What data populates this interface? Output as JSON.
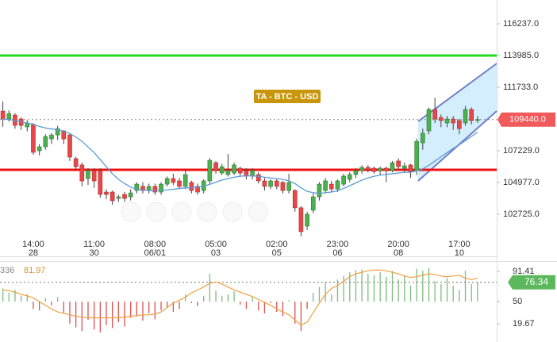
{
  "chart_data": [
    {
      "type": "candlestick",
      "categories": [
        null,
        null,
        null,
        null,
        null,
        "14:00",
        null,
        null,
        null,
        null,
        null,
        null,
        null,
        null,
        null,
        "11:00",
        null,
        null,
        null,
        null,
        null,
        null,
        null,
        null,
        null,
        "08:00",
        null,
        null,
        null,
        null,
        null,
        null,
        null,
        null,
        null,
        "05:00",
        null,
        null,
        null,
        null,
        null,
        null,
        null,
        null,
        null,
        "02:00",
        null,
        null,
        null,
        null,
        null,
        null,
        null,
        null,
        null,
        "23:00",
        null,
        null,
        null,
        null,
        null,
        null,
        null,
        null,
        null,
        "20:00",
        null,
        null,
        null,
        null,
        null,
        null,
        null,
        null,
        null,
        "17:00",
        null,
        null,
        null
      ],
      "date_labels": [
        null,
        null,
        null,
        null,
        null,
        "28",
        null,
        null,
        null,
        null,
        null,
        null,
        null,
        null,
        null,
        "30",
        null,
        null,
        null,
        null,
        null,
        null,
        null,
        null,
        null,
        "06/01",
        null,
        null,
        null,
        null,
        null,
        null,
        null,
        null,
        null,
        "03",
        null,
        null,
        null,
        null,
        null,
        null,
        null,
        null,
        null,
        "05",
        null,
        null,
        null,
        null,
        null,
        null,
        null,
        null,
        null,
        "06",
        null,
        null,
        null,
        null,
        null,
        null,
        null,
        null,
        null,
        "08",
        null,
        null,
        null,
        null,
        null,
        null,
        null,
        null,
        null,
        "10",
        null,
        null,
        null
      ],
      "open": [
        110040,
        109480,
        109760,
        109480,
        108920,
        109100,
        107230,
        107510,
        108070,
        108350,
        108640,
        108350,
        106670,
        106220,
        105260,
        105820,
        105820,
        104300,
        104300,
        103850,
        104130,
        103960,
        104410,
        104700,
        104410,
        104700,
        104300,
        104860,
        105260,
        105090,
        104700,
        104980,
        104700,
        104410,
        105090,
        106380,
        105650,
        105540,
        105650,
        105990,
        105820,
        105430,
        105540,
        105090,
        104700,
        105090,
        104980,
        104410,
        104410,
        103180,
        101880,
        103010,
        103960,
        104410,
        104860,
        104520,
        104860,
        105200,
        105540,
        105820,
        106050,
        105990,
        105820,
        105990,
        105820,
        106500,
        105990,
        106220,
        105820,
        107790,
        108640,
        110160,
        109590,
        109200,
        109480,
        109370,
        109200,
        110160,
        109400
      ],
      "high": [
        110720,
        110100,
        109900,
        109600,
        109400,
        109200,
        107700,
        108400,
        108500,
        109000,
        108700,
        108500,
        106800,
        106400,
        106000,
        106000,
        106000,
        104500,
        104400,
        104100,
        104300,
        104500,
        105000,
        105000,
        104900,
        104900,
        105000,
        105400,
        105600,
        105300,
        105900,
        105100,
        104900,
        105200,
        106700,
        106500,
        106300,
        107000,
        106400,
        106100,
        106000,
        106000,
        105700,
        105300,
        105200,
        105200,
        105100,
        105600,
        104500,
        103300,
        102900,
        104200,
        105000,
        105300,
        105100,
        105200,
        105600,
        105700,
        106000,
        106200,
        106200,
        106100,
        106100,
        106100,
        106500,
        106700,
        106400,
        106300,
        108100,
        108800,
        110300,
        111000,
        109800,
        109700,
        109700,
        109500,
        110400,
        110300,
        109700
      ],
      "low": [
        108920,
        109300,
        108800,
        108700,
        108600,
        106950,
        106900,
        107300,
        107700,
        108000,
        107700,
        106500,
        105800,
        104700,
        104800,
        104600,
        103900,
        103800,
        103400,
        103600,
        103600,
        103700,
        104200,
        104200,
        104200,
        104100,
        104100,
        104700,
        104800,
        104500,
        104500,
        104200,
        104100,
        104200,
        104900,
        105600,
        105500,
        105400,
        105500,
        105400,
        105200,
        105200,
        104900,
        104400,
        104500,
        104500,
        104200,
        104200,
        102900,
        101150,
        101600,
        102800,
        103700,
        104200,
        104300,
        104300,
        104700,
        105000,
        105300,
        105600,
        105700,
        105600,
        105500,
        105000,
        105700,
        105900,
        105700,
        105300,
        105500,
        107300,
        108400,
        109200,
        108900,
        108900,
        108700,
        108400,
        109000,
        109100,
        109200
      ],
      "close": [
        109480,
        109870,
        109030,
        109030,
        109200,
        107120,
        107510,
        108240,
        108350,
        108800,
        108070,
        106780,
        106100,
        105090,
        105820,
        105090,
        104130,
        104130,
        103680,
        103960,
        103850,
        104240,
        104860,
        104410,
        104700,
        104300,
        104860,
        105260,
        104980,
        104700,
        105540,
        104410,
        104300,
        105090,
        106550,
        105820,
        106100,
        105820,
        106220,
        105650,
        105430,
        105820,
        105090,
        104700,
        105090,
        104700,
        104410,
        104980,
        103180,
        101490,
        102720,
        103960,
        104860,
        105090,
        104520,
        105090,
        105430,
        105540,
        105820,
        106050,
        105880,
        105760,
        105990,
        105820,
        106380,
        106100,
        106160,
        105760,
        107900,
        108470,
        110160,
        109480,
        109370,
        109480,
        109200,
        108800,
        110160,
        109370,
        109440
      ],
      "up_color": "#4caf50",
      "down_color": "#e8474a",
      "moving_average": {
        "color": "#5b9bd5",
        "values": [
          109480,
          109440,
          109380,
          109300,
          109200,
          109100,
          108950,
          108850,
          108780,
          108700,
          108620,
          108450,
          108200,
          107900,
          107500,
          107100,
          106600,
          106100,
          105600,
          105200,
          104900,
          104650,
          104500,
          104450,
          104400,
          104400,
          104420,
          104450,
          104500,
          104550,
          104600,
          104600,
          104650,
          104700,
          104850,
          105000,
          105150,
          105250,
          105350,
          105420,
          105450,
          105450,
          105420,
          105350,
          105300,
          105250,
          105200,
          105100,
          104900,
          104600,
          104350,
          104250,
          104200,
          104250,
          104300,
          104400,
          104550,
          104750,
          104950,
          105150,
          105300,
          105420,
          105500,
          105560,
          105600,
          105650,
          105700,
          105700,
          105800,
          105950,
          106200,
          106500,
          106800,
          107100,
          107400,
          107650,
          107950,
          108250,
          108550
        ]
      },
      "levels": [
        {
          "value": 113985,
          "color": "#22dd22"
        },
        {
          "value": 105880,
          "color": "#ee1111"
        }
      ],
      "last_price": {
        "value": 109440,
        "label": "109440.0",
        "color": "#f05a5a"
      },
      "annotation": "TA - BTC - USD",
      "ylim": [
        99797,
        117926
      ],
      "yticks": [
        {
          "value": 116237,
          "label": "116237.0"
        },
        {
          "value": 113985,
          "label": "113985.0"
        },
        {
          "value": 111733,
          "label": "111733.0"
        },
        {
          "value": 107229,
          "label": "107229.0"
        },
        {
          "value": 104977,
          "label": "104977.0"
        },
        {
          "value": 102725,
          "label": "102725.0"
        }
      ]
    },
    {
      "type": "bar",
      "header_labels": [
        "336",
        "81.97"
      ],
      "values": [
        68,
        62,
        66,
        58,
        60,
        40,
        38,
        55,
        45,
        56,
        35,
        20,
        15,
        10,
        25,
        12,
        8,
        18,
        14,
        22,
        16,
        28,
        30,
        24,
        34,
        26,
        38,
        42,
        36,
        40,
        60,
        48,
        44,
        58,
        88,
        65,
        58,
        60,
        64,
        46,
        40,
        56,
        38,
        34,
        48,
        36,
        30,
        52,
        20,
        10,
        40,
        62,
        70,
        76,
        60,
        80,
        85,
        90,
        93,
        94,
        88,
        86,
        90,
        84,
        92,
        80,
        86,
        72,
        95,
        92,
        96,
        78,
        74,
        82,
        72,
        66,
        92,
        74,
        76.34
      ],
      "baseline": 50,
      "up_color": "#7dbb7d",
      "down_color": "#d9534f",
      "line": {
        "color": "#f0a040",
        "values": [
          66,
          65,
          63,
          60,
          58,
          55,
          50,
          45,
          40,
          36,
          34,
          32,
          30,
          29,
          28,
          28,
          28,
          28,
          28,
          28,
          29,
          30,
          31,
          32,
          32,
          33,
          36,
          42,
          48,
          52,
          56,
          62,
          66,
          70,
          75,
          77,
          74,
          70,
          66,
          63,
          60,
          57,
          53,
          49,
          45,
          40,
          36,
          32,
          25,
          18,
          22,
          35,
          48,
          60,
          68,
          72,
          78,
          84,
          88,
          90,
          92,
          93,
          93,
          92,
          90,
          88,
          85,
          83,
          84,
          86,
          88,
          87,
          85,
          84,
          85,
          86,
          82,
          80,
          81.97
        ]
      },
      "current_value": {
        "value": 76.34,
        "label": "76.34",
        "color": "#5cb85c"
      },
      "ylim": [
        -5,
        101
      ],
      "yticks": [
        91.41,
        50,
        19.67
      ]
    }
  ]
}
